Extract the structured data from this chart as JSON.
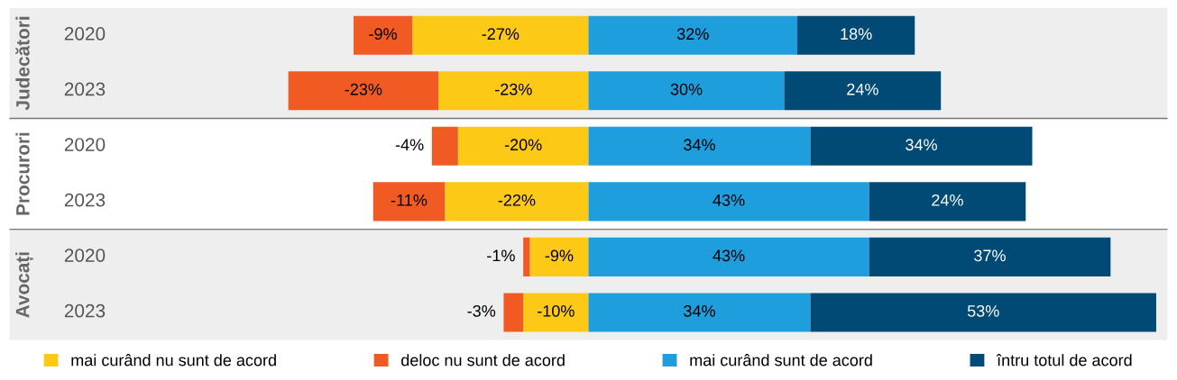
{
  "chart_data": {
    "type": "bar",
    "orientation": "horizontal",
    "stacked": true,
    "categories": [
      "2020",
      "2023",
      "2020",
      "2023",
      "2020",
      "2023"
    ],
    "annotations": [
      "Judecători",
      "Procurori",
      "Avocați"
    ],
    "series": [
      {
        "name": "mai curând nu sunt de acord",
        "color": "#fcc917",
        "values": [
          -27,
          -23,
          -20,
          -22,
          -9,
          -10
        ],
        "value_labels": [
          "-27%",
          "-23%",
          "-20%",
          "-22%",
          "-9%",
          "-10%"
        ]
      },
      {
        "name": "deloc nu sunt de acord",
        "color": "#f15a22",
        "values": [
          -9,
          -23,
          -4,
          -11,
          -1,
          -3
        ],
        "value_labels": [
          "-9%",
          "-23%",
          "-4%",
          "-11%",
          "-1%",
          "-3%"
        ]
      },
      {
        "name": "mai curând sunt de acord",
        "color": "#1f9ede",
        "values": [
          32,
          30,
          34,
          43,
          43,
          34
        ],
        "value_labels": [
          "32%",
          "30%",
          "34%",
          "43%",
          "43%",
          "34%"
        ]
      },
      {
        "name": "întru totul de acord",
        "color": "#004a75",
        "values": [
          18,
          24,
          34,
          24,
          37,
          53
        ],
        "value_labels": [
          "18%",
          "24%",
          "34%",
          "24%",
          "37%",
          "53%"
        ]
      }
    ],
    "legend": "bottom"
  }
}
